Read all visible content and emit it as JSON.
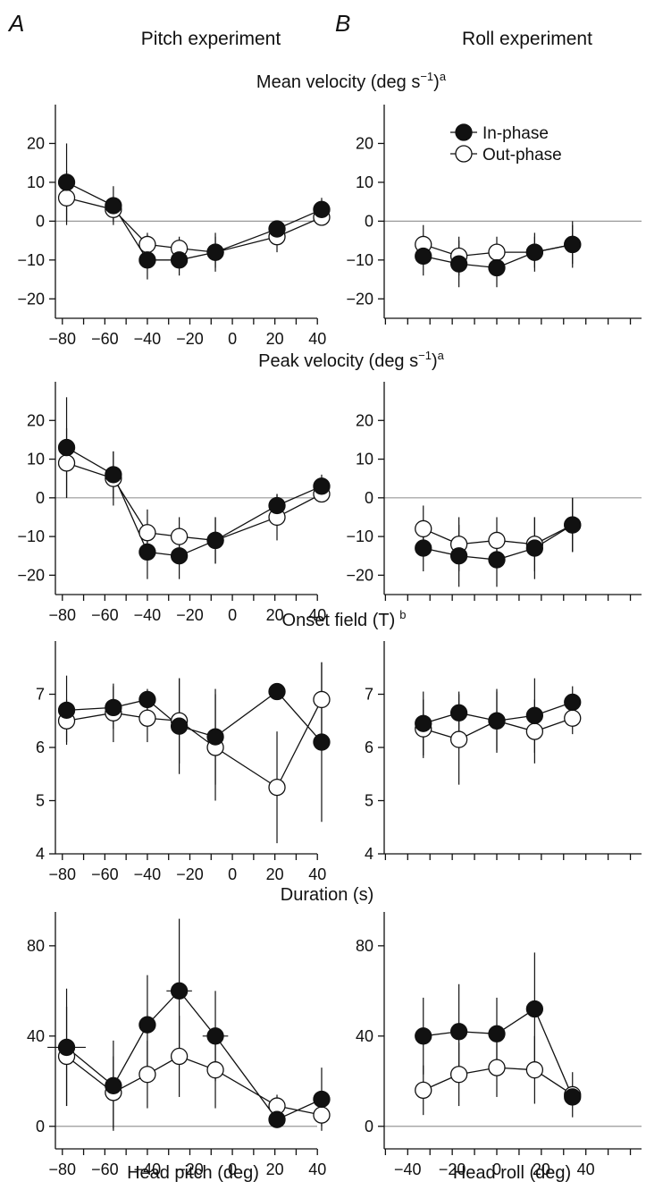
{
  "labels": {
    "panel_a": "A",
    "panel_b": "B",
    "col_a_title": "Pitch experiment",
    "col_b_title": "Roll experiment",
    "row_titles": [
      {
        "main": "Mean velocity (deg s",
        "sup1": "−1",
        "close": ")",
        "sup2": "a"
      },
      {
        "main": "Peak velocity (deg s",
        "sup1": "−1",
        "close": ")",
        "sup2": "a"
      },
      {
        "main": "Onset field (T)",
        "sup1": "",
        "close": "",
        "sup2": "b"
      },
      {
        "main": "Duration (s)",
        "sup1": "",
        "close": "",
        "sup2": ""
      }
    ],
    "xlabel_a": "Head pitch (deg)",
    "xlabel_b": "Head roll (deg)"
  },
  "legend": {
    "in_phase": "In-phase",
    "out_phase": "Out-phase"
  },
  "colors": {
    "in_phase": "#111111",
    "out_phase": "#ffffff",
    "zero_line": "#999999",
    "axis": "#111111"
  },
  "chart_data": [
    {
      "type": "line",
      "title": "Mean velocity (deg s−1)a",
      "subplot": "A",
      "xlim": [
        -90,
        50
      ],
      "xticks": [
        -80,
        -60,
        -40,
        -20,
        0,
        20,
        40
      ],
      "ylim": [
        -25,
        30
      ],
      "yticks": [
        -20,
        -10,
        0,
        10,
        20
      ],
      "zero_line": true,
      "series": [
        {
          "name": "In-phase",
          "x": [
            -78,
            -56,
            -40,
            -25,
            -8,
            21,
            42
          ],
          "y": [
            10,
            4,
            -10,
            -10,
            -8,
            -2,
            3
          ],
          "err": [
            10,
            5,
            5,
            4,
            5,
            2,
            3
          ]
        },
        {
          "name": "Out-phase",
          "x": [
            -78,
            -56,
            -40,
            -25,
            -8,
            21,
            42
          ],
          "y": [
            6,
            3,
            -6,
            -7,
            -8,
            -4,
            1
          ],
          "err": [
            7,
            3,
            3,
            3,
            4,
            4,
            2
          ]
        }
      ]
    },
    {
      "type": "line",
      "title": "Mean velocity (deg s−1)a",
      "subplot": "B",
      "xlim": [
        -65,
        65
      ],
      "xticks": [],
      "ylim": [
        -25,
        30
      ],
      "yticks": [
        -20,
        -10,
        0,
        10,
        20
      ],
      "zero_line": true,
      "series": [
        {
          "name": "In-phase",
          "x": [
            -33,
            -17,
            0,
            17,
            34
          ],
          "y": [
            -9,
            -11,
            -12,
            -8,
            -6
          ],
          "err": [
            5,
            6,
            5,
            5,
            6
          ]
        },
        {
          "name": "Out-phase",
          "x": [
            -33,
            -17,
            0,
            17,
            34
          ],
          "y": [
            -6,
            -9,
            -8,
            -8,
            -6
          ],
          "err": [
            5,
            5,
            4,
            4,
            5
          ]
        }
      ]
    },
    {
      "type": "line",
      "title": "Peak velocity (deg s−1)a",
      "subplot": "A",
      "xlim": [
        -90,
        50
      ],
      "xticks": [
        -80,
        -60,
        -40,
        -20,
        0,
        20,
        40
      ],
      "ylim": [
        -25,
        30
      ],
      "yticks": [
        -20,
        -10,
        0,
        10,
        20
      ],
      "zero_line": true,
      "series": [
        {
          "name": "In-phase",
          "x": [
            -78,
            -56,
            -40,
            -25,
            -8,
            21,
            42
          ],
          "y": [
            13,
            6,
            -14,
            -15,
            -11,
            -2,
            3
          ],
          "err": [
            13,
            6,
            7,
            6,
            6,
            3,
            3
          ]
        },
        {
          "name": "Out-phase",
          "x": [
            -78,
            -56,
            -40,
            -25,
            -8,
            21,
            42
          ],
          "y": [
            9,
            5,
            -9,
            -10,
            -11,
            -5,
            1
          ],
          "err": [
            9,
            7,
            6,
            5,
            6,
            6,
            2
          ]
        }
      ]
    },
    {
      "type": "line",
      "title": "Peak velocity (deg s−1)a",
      "subplot": "B",
      "xlim": [
        -65,
        65
      ],
      "xticks": [],
      "ylim": [
        -25,
        30
      ],
      "yticks": [
        -20,
        -10,
        0,
        10,
        20
      ],
      "zero_line": true,
      "series": [
        {
          "name": "In-phase",
          "x": [
            -33,
            -17,
            0,
            17,
            34
          ],
          "y": [
            -13,
            -15,
            -16,
            -13,
            -7
          ],
          "err": [
            6,
            8,
            7,
            8,
            7
          ]
        },
        {
          "name": "Out-phase",
          "x": [
            -33,
            -17,
            0,
            17,
            34
          ],
          "y": [
            -8,
            -12,
            -11,
            -12,
            -7
          ],
          "err": [
            6,
            7,
            6,
            7,
            7
          ]
        }
      ]
    },
    {
      "type": "line",
      "title": "Onset field (T)b",
      "subplot": "A",
      "xlim": [
        -90,
        50
      ],
      "xticks": [
        -80,
        -60,
        -40,
        -20,
        0,
        20,
        40
      ],
      "ylim": [
        4,
        8
      ],
      "yticks": [
        4,
        5,
        6,
        7
      ],
      "zero_line": false,
      "series": [
        {
          "name": "In-phase",
          "x": [
            -78,
            -56,
            -40,
            -25,
            -8,
            21,
            42
          ],
          "y": [
            6.7,
            6.75,
            6.9,
            6.4,
            6.2,
            7.05,
            6.1
          ],
          "err": [
            0.65,
            0.4,
            0.2,
            0.9,
            0.9,
            0.0,
            1.5
          ]
        },
        {
          "name": "Out-phase",
          "x": [
            -78,
            -56,
            -40,
            -25,
            -8,
            21,
            42
          ],
          "y": [
            6.5,
            6.65,
            6.55,
            6.5,
            6.0,
            5.25,
            6.9
          ],
          "err": [
            0.4,
            0.55,
            0.45,
            0.8,
            1.0,
            1.05,
            0.7
          ]
        }
      ]
    },
    {
      "type": "line",
      "title": "Onset field (T)b",
      "subplot": "B",
      "xlim": [
        -65,
        65
      ],
      "xticks": [],
      "ylim": [
        4,
        8
      ],
      "yticks": [
        4,
        5,
        6,
        7
      ],
      "zero_line": false,
      "series": [
        {
          "name": "In-phase",
          "x": [
            -33,
            -17,
            0,
            17,
            34
          ],
          "y": [
            6.45,
            6.65,
            6.5,
            6.6,
            6.85
          ],
          "err": [
            0.6,
            0.4,
            0.55,
            0.7,
            0.3
          ]
        },
        {
          "name": "Out-phase",
          "x": [
            -33,
            -17,
            0,
            17,
            34
          ],
          "y": [
            6.35,
            6.15,
            6.5,
            6.3,
            6.55
          ],
          "err": [
            0.55,
            0.85,
            0.6,
            0.6,
            0.3
          ]
        }
      ]
    },
    {
      "type": "line",
      "title": "Duration (s)",
      "subplot": "A",
      "xlim": [
        -90,
        50
      ],
      "xticks": [
        -80,
        -60,
        -40,
        -20,
        0,
        20,
        40
      ],
      "xlabel": "Head pitch (deg)",
      "ylim": [
        -10,
        95
      ],
      "yticks": [
        0,
        40,
        80
      ],
      "zero_line": true,
      "series": [
        {
          "name": "In-phase",
          "x": [
            -78,
            -56,
            -40,
            -25,
            -8,
            21,
            42
          ],
          "y": [
            35,
            18,
            45,
            60,
            40,
            3,
            12
          ],
          "err": [
            26,
            20,
            22,
            32,
            20,
            3,
            14
          ],
          "xerr": [
            9,
            0,
            2,
            6,
            6,
            0,
            0
          ]
        },
        {
          "name": "Out-phase",
          "x": [
            -78,
            -56,
            -40,
            -25,
            -8,
            21,
            42
          ],
          "y": [
            31,
            15,
            23,
            31,
            25,
            9,
            5
          ],
          "err": [
            22,
            16,
            15,
            18,
            17,
            5,
            5
          ]
        }
      ]
    },
    {
      "type": "line",
      "title": "Duration (s)",
      "subplot": "B",
      "xlim": [
        -65,
        65
      ],
      "xticks": [
        -40,
        -20,
        0,
        20,
        40
      ],
      "xlabel": "Head roll (deg)",
      "ylim": [
        -10,
        95
      ],
      "yticks": [
        0,
        40,
        80
      ],
      "zero_line": true,
      "series": [
        {
          "name": "In-phase",
          "x": [
            -33,
            -17,
            0,
            17,
            34
          ],
          "y": [
            40,
            42,
            41,
            52,
            13
          ],
          "err": [
            17,
            21,
            16,
            25,
            2
          ]
        },
        {
          "name": "Out-phase",
          "x": [
            -33,
            -17,
            0,
            17,
            34
          ],
          "y": [
            16,
            23,
            26,
            25,
            14
          ],
          "err": [
            11,
            14,
            13,
            15,
            10
          ]
        }
      ]
    }
  ]
}
